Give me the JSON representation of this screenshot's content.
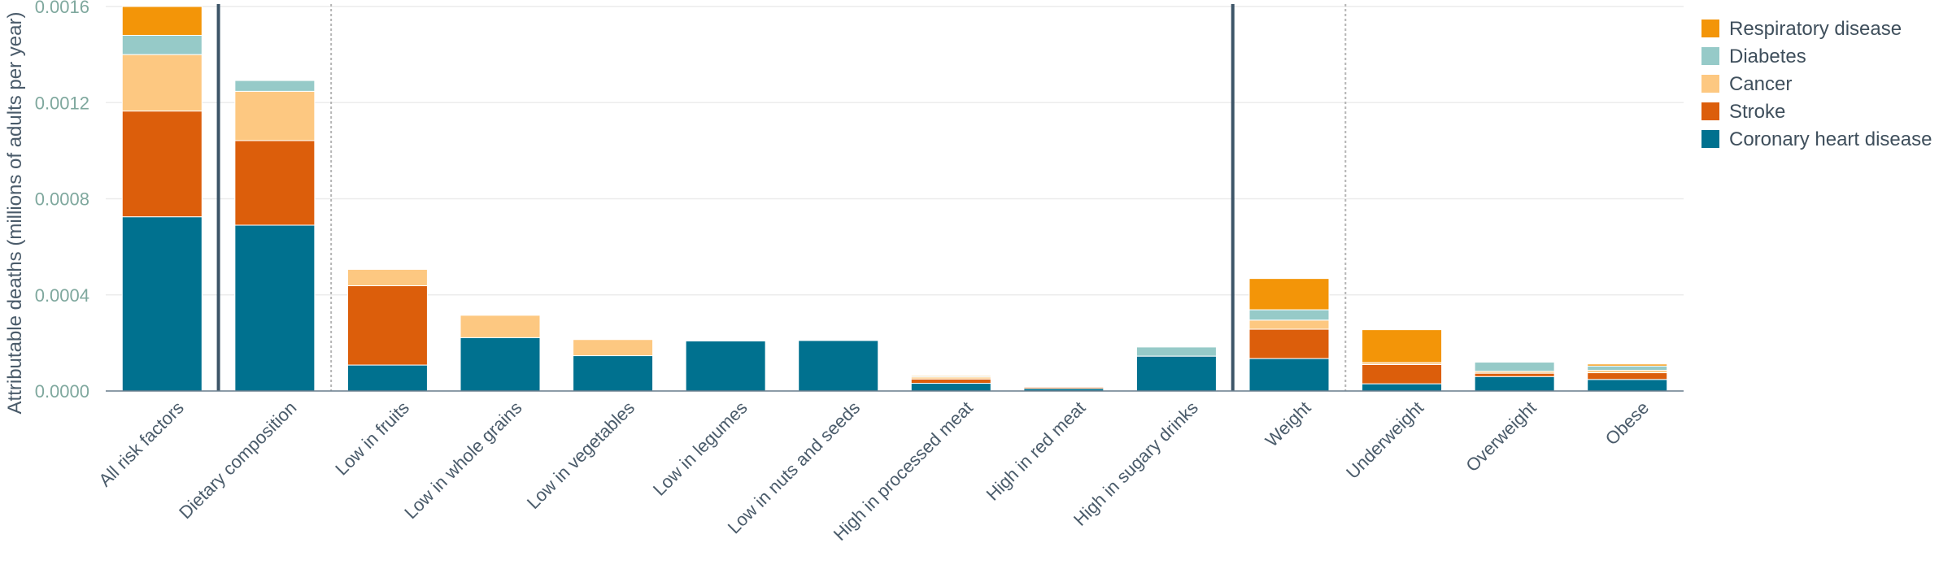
{
  "chart_data": {
    "type": "bar",
    "stacked": true,
    "ylabel": "Attributable deaths (millions of adults per year)",
    "ylim": [
      0,
      0.0016
    ],
    "yticks": [
      "0.0000",
      "0.0004",
      "0.0008",
      "0.0012",
      "0.0016"
    ],
    "grid": true,
    "legend_position": "top-right",
    "categories": [
      "All risk factors",
      "Dietary composition",
      "Low in fruits",
      "Low in whole grains",
      "Low in vegetables",
      "Low in legumes",
      "Low in nuts and seeds",
      "High in processed meat",
      "High in red meat",
      "High in sugary drinks",
      "Weight",
      "Underweight",
      "Overweight",
      "Obese"
    ],
    "series": [
      {
        "name": "Coronary heart disease",
        "color": "#00718f",
        "values": [
          0.000725,
          0.00069,
          0.000108,
          0.000222,
          0.000147,
          0.000208,
          0.00021,
          3.2e-05,
          1e-05,
          0.000145,
          0.000135,
          3e-05,
          6e-05,
          4.8e-05
        ]
      },
      {
        "name": "Stroke",
        "color": "#dc5e0b",
        "values": [
          0.00044,
          0.000352,
          0.00033,
          0,
          0,
          0,
          0,
          1.8e-05,
          6e-06,
          0,
          0.000122,
          8e-05,
          1.4e-05,
          2.8e-05
        ]
      },
      {
        "name": "Cancer",
        "color": "#fdc881",
        "values": [
          0.000235,
          0.000205,
          6.8e-05,
          9.3e-05,
          6.7e-05,
          0,
          0,
          8e-06,
          2e-06,
          0,
          3.8e-05,
          8e-06,
          8e-06,
          1e-05
        ]
      },
      {
        "name": "Diabetes",
        "color": "#96cac8",
        "values": [
          8e-05,
          4.5e-05,
          0,
          0,
          0,
          0,
          0,
          4e-06,
          1e-06,
          3.8e-05,
          4.3e-05,
          0,
          3.8e-05,
          1.8e-05
        ]
      },
      {
        "name": "Respiratory disease",
        "color": "#f39508",
        "values": [
          0.00013,
          0,
          0,
          0,
          0,
          0,
          0,
          4e-06,
          1e-06,
          0,
          0.00013,
          0.000137,
          2e-06,
          8e-06
        ]
      }
    ],
    "group_separators_solid_after": [
      "All risk factors",
      "High in sugary drinks"
    ],
    "group_separators_dotted_after": [
      "Dietary composition",
      "Weight"
    ]
  }
}
